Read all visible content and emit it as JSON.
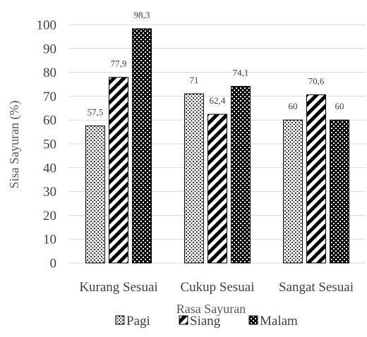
{
  "chart_data": {
    "type": "bar",
    "categories": [
      "Kurang Sesuai",
      "Cukup Sesuai",
      "Sangat Sesuai"
    ],
    "series": [
      {
        "name": "Pagi",
        "values": [
          57.5,
          71,
          60
        ],
        "labels": [
          "57,5",
          "71",
          "60"
        ],
        "pattern": "dots"
      },
      {
        "name": "Siang",
        "values": [
          77.9,
          62.4,
          70.6
        ],
        "labels": [
          "77,9",
          "62,4",
          "70,6"
        ],
        "pattern": "diagonal"
      },
      {
        "name": "Malam",
        "values": [
          98.3,
          74.1,
          60
        ],
        "labels": [
          "98,3",
          "74,1",
          "60"
        ],
        "pattern": "checker"
      }
    ],
    "xlabel": "Rasa Sayuran",
    "ylabel": "Sisa Sayuran (%)",
    "ylim": [
      0,
      100
    ],
    "yticks": [
      0,
      10,
      20,
      30,
      40,
      50,
      60,
      70,
      80,
      90,
      100
    ],
    "grid": true,
    "legend": "bottom"
  },
  "colors": {
    "bar_ink": "#000000",
    "grid": "#d9d9d9",
    "text": "#404040"
  }
}
